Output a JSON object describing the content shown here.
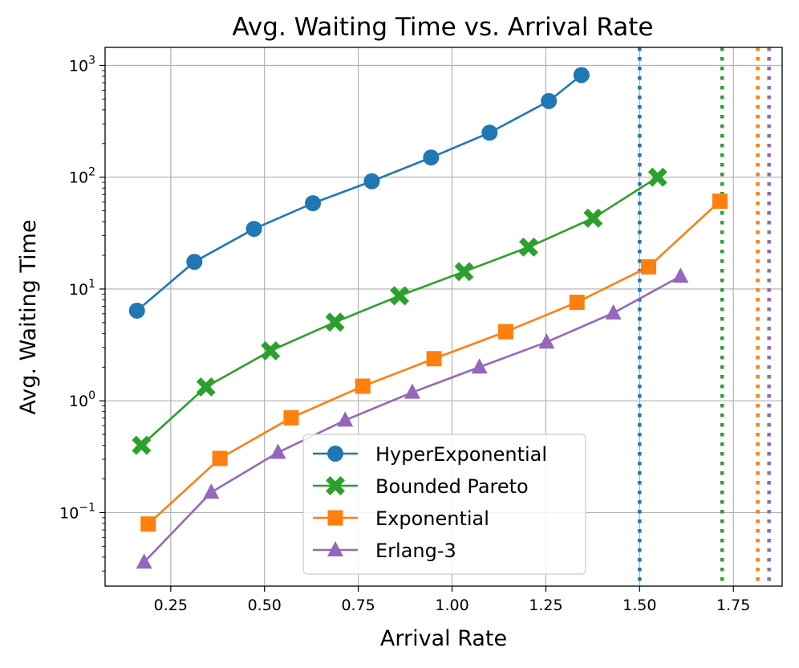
{
  "chart_data": {
    "type": "line",
    "title": "Avg. Waiting Time vs. Arrival Rate",
    "xlabel": "Arrival Rate",
    "ylabel": "Avg. Waiting Time",
    "yscale": "log",
    "xlim": [
      0.075,
      1.88
    ],
    "ylim": [
      0.022,
      1450
    ],
    "grid": true,
    "legend_position": "lower-center",
    "x_ticks": [
      {
        "value": 0.25,
        "label": "0.25"
      },
      {
        "value": 0.5,
        "label": "0.50"
      },
      {
        "value": 0.75,
        "label": "0.75"
      },
      {
        "value": 1.0,
        "label": "1.00"
      },
      {
        "value": 1.25,
        "label": "1.25"
      },
      {
        "value": 1.5,
        "label": "1.50"
      },
      {
        "value": 1.75,
        "label": "1.75"
      }
    ],
    "y_ticks": [
      {
        "value": 0.1,
        "base": "10",
        "exp": "−1"
      },
      {
        "value": 1,
        "base": "10",
        "exp": "0"
      },
      {
        "value": 10,
        "base": "10",
        "exp": "1"
      },
      {
        "value": 100,
        "base": "10",
        "exp": "2"
      },
      {
        "value": 1000,
        "base": "10",
        "exp": "3"
      }
    ],
    "series": [
      {
        "name": "HyperExponential",
        "color": "#1f77b4",
        "marker": "circle",
        "x": [
          0.16,
          0.313,
          0.472,
          0.629,
          0.786,
          0.944,
          1.1,
          1.258,
          1.345
        ],
        "y": [
          6.4,
          17.5,
          34.5,
          58.5,
          92,
          150,
          250,
          480,
          820
        ],
        "capacity": 1.5
      },
      {
        "name": "Bounded Pareto",
        "color": "#2ca02c",
        "marker": "x",
        "x": [
          0.172,
          0.344,
          0.516,
          0.688,
          0.86,
          1.032,
          1.204,
          1.376,
          1.548
        ],
        "y": [
          0.4,
          1.33,
          2.8,
          5.05,
          8.7,
          14.3,
          23.7,
          43,
          100
        ],
        "capacity": 1.72
      },
      {
        "name": "Exponential",
        "color": "#ff7f0e",
        "marker": "square",
        "x": [
          0.19,
          0.381,
          0.571,
          0.762,
          0.952,
          1.143,
          1.333,
          1.524,
          1.714
        ],
        "y": [
          0.079,
          0.305,
          0.705,
          1.35,
          2.38,
          4.15,
          7.6,
          15.8,
          61
        ],
        "capacity": 1.815
      },
      {
        "name": "Erlang-3",
        "color": "#9467bd",
        "marker": "triangle",
        "x": [
          0.179,
          0.358,
          0.536,
          0.715,
          0.894,
          1.073,
          1.252,
          1.43,
          1.609
        ],
        "y": [
          0.036,
          0.152,
          0.345,
          0.67,
          1.19,
          2.0,
          3.35,
          6.1,
          13.0
        ],
        "capacity": 1.845
      }
    ]
  }
}
